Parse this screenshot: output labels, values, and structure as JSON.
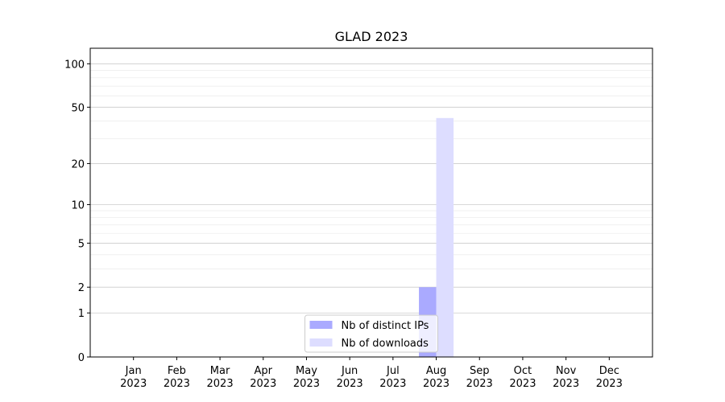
{
  "chart_data": {
    "type": "bar",
    "title": "GLAD 2023",
    "categories": [
      "Jan\n2023",
      "Feb\n2023",
      "Mar\n2023",
      "Apr\n2023",
      "May\n2023",
      "Jun\n2023",
      "Jul\n2023",
      "Aug\n2023",
      "Sep\n2023",
      "Oct\n2023",
      "Nov\n2023",
      "Dec\n2023"
    ],
    "series": [
      {
        "name": "Nb of distinct IPs",
        "color": "#aaaaff",
        "values": [
          0,
          0,
          0,
          0,
          0,
          0,
          0,
          2,
          0,
          0,
          0,
          0
        ]
      },
      {
        "name": "Nb of downloads",
        "color": "#ddddff",
        "values": [
          0,
          0,
          0,
          0,
          0,
          0,
          0,
          42,
          0,
          0,
          0,
          0
        ]
      }
    ],
    "yscale": "log1p",
    "ylim": [
      0,
      128
    ],
    "yticks": [
      0,
      1,
      2,
      5,
      10,
      20,
      50,
      100
    ],
    "minor_yticks": [
      3,
      4,
      6,
      7,
      8,
      9,
      30,
      40,
      60,
      70,
      80,
      90
    ],
    "grid": true,
    "legend": "lower center"
  }
}
